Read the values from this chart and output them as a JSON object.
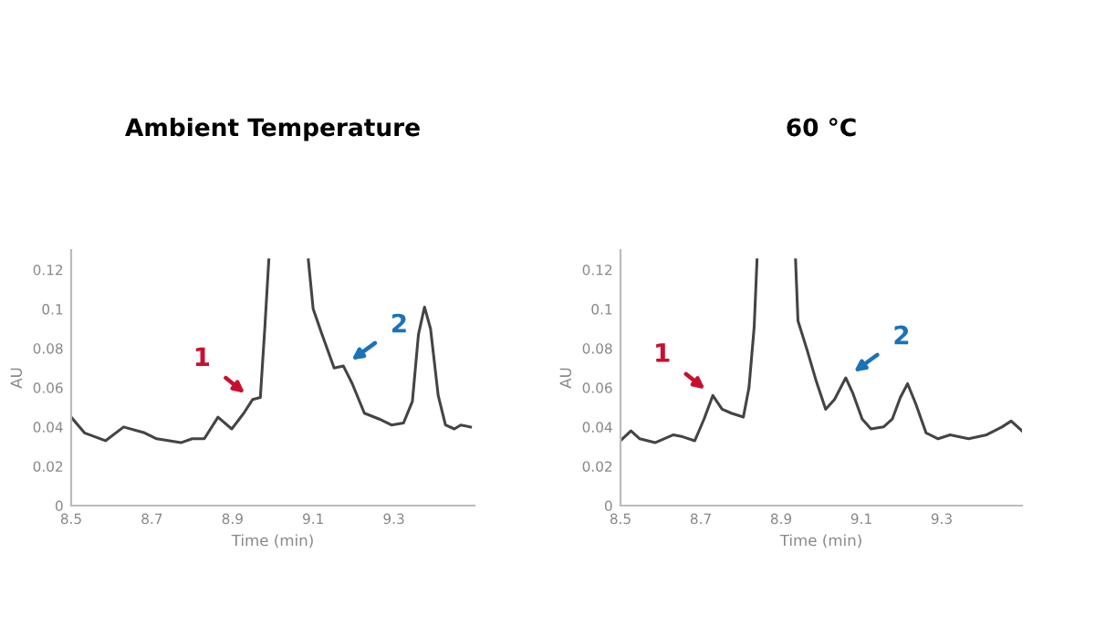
{
  "chart_data": [
    {
      "type": "line",
      "title": "Ambient Temperature",
      "xlabel": "Time (min)",
      "ylabel": "AU",
      "xlim": [
        8.5,
        9.5
      ],
      "ylim": [
        0,
        0.13
      ],
      "xticks": [
        8.5,
        8.7,
        8.9,
        9.1,
        9.3
      ],
      "yticks": [
        0,
        0.02,
        0.04,
        0.06,
        0.08,
        0.1,
        0.12
      ],
      "grid": false,
      "legend": false,
      "series": [
        {
          "color": "#444444",
          "x": [
            8.5,
            8.533,
            8.585,
            8.63,
            8.682,
            8.712,
            8.772,
            8.8,
            8.83,
            8.864,
            8.898,
            8.928,
            8.95,
            8.969,
            8.98,
            8.99,
            9.04,
            9.088,
            9.1,
            9.122,
            9.152,
            9.175,
            9.197,
            9.227,
            9.264,
            9.294,
            9.324,
            9.346,
            9.361,
            9.376,
            9.391,
            9.41,
            9.428,
            9.45,
            9.466,
            9.49
          ],
          "values": [
            0.045,
            0.037,
            0.033,
            0.04,
            0.037,
            0.034,
            0.032,
            0.034,
            0.034,
            0.045,
            0.039,
            0.047,
            0.054,
            0.055,
            0.09,
            0.125,
            null,
            0.125,
            0.1,
            0.087,
            0.07,
            0.071,
            0.062,
            0.047,
            0.044,
            0.041,
            0.042,
            0.053,
            0.087,
            0.101,
            0.09,
            0.056,
            0.041,
            0.039,
            0.041,
            0.04
          ]
        }
      ],
      "annotations": [
        {
          "text": "1",
          "x": 8.95,
          "y": 0.054
        },
        {
          "text": "2",
          "x": 9.175,
          "y": 0.071
        }
      ]
    },
    {
      "type": "line",
      "title": "60 °C",
      "xlabel": "Time (min)",
      "ylabel": "AU",
      "xlim": [
        8.5,
        9.5
      ],
      "ylim": [
        0,
        0.13
      ],
      "xticks": [
        8.5,
        8.7,
        8.9,
        9.1,
        9.3
      ],
      "yticks": [
        0,
        0.02,
        0.04,
        0.06,
        0.08,
        0.1,
        0.12
      ],
      "grid": false,
      "legend": false,
      "series": [
        {
          "color": "#444444",
          "x": [
            8.5,
            8.526,
            8.548,
            8.586,
            8.632,
            8.655,
            8.685,
            8.708,
            8.73,
            8.753,
            8.776,
            8.806,
            8.82,
            8.833,
            8.84,
            8.89,
            8.936,
            8.942,
            8.965,
            8.988,
            9.011,
            9.033,
            9.061,
            9.079,
            9.102,
            9.124,
            9.155,
            9.177,
            9.197,
            9.215,
            9.235,
            9.261,
            9.291,
            9.321,
            9.367,
            9.412,
            9.45,
            9.473,
            9.5
          ],
          "values": [
            0.033,
            0.038,
            0.034,
            0.032,
            0.036,
            0.035,
            0.033,
            0.044,
            0.056,
            0.049,
            0.047,
            0.045,
            0.06,
            0.091,
            0.125,
            null,
            0.125,
            0.094,
            0.079,
            0.063,
            0.049,
            0.054,
            0.065,
            0.057,
            0.044,
            0.039,
            0.04,
            0.044,
            0.055,
            0.062,
            0.052,
            0.037,
            0.034,
            0.036,
            0.034,
            0.036,
            0.04,
            0.043,
            0.038
          ]
        }
      ],
      "annotations": [
        {
          "text": "1",
          "x": 8.73,
          "y": 0.056
        },
        {
          "text": "2",
          "x": 9.061,
          "y": 0.065
        }
      ]
    }
  ]
}
